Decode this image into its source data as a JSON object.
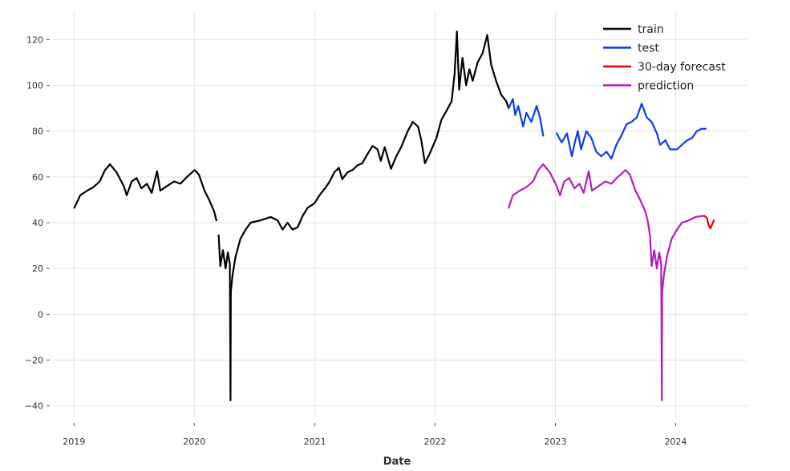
{
  "chart_data": {
    "type": "line",
    "xlabel": "Date",
    "ylabel": "",
    "x_axis_kind": "date",
    "xlim": [
      "2018-10-29",
      "2024-08-06"
    ],
    "ylim": [
      -45,
      132
    ],
    "x_ticks": [
      {
        "date": "2019-01-01",
        "label": "2019"
      },
      {
        "date": "2020-01-01",
        "label": "2020"
      },
      {
        "date": "2021-01-01",
        "label": "2021"
      },
      {
        "date": "2022-01-01",
        "label": "2022"
      },
      {
        "date": "2023-01-01",
        "label": "2023"
      },
      {
        "date": "2024-01-01",
        "label": "2024"
      }
    ],
    "y_ticks": [
      {
        "value": 120,
        "label": "120"
      },
      {
        "value": 100,
        "label": "100"
      },
      {
        "value": 80,
        "label": "80"
      },
      {
        "value": 60,
        "label": "60"
      },
      {
        "value": 40,
        "label": "40"
      },
      {
        "value": 20,
        "label": "20"
      },
      {
        "value": 0,
        "label": "0"
      },
      {
        "value": -20,
        "label": "−20"
      },
      {
        "value": -40,
        "label": "−40"
      }
    ],
    "grid": true,
    "legend_position": "top-right",
    "series": [
      {
        "name": "train",
        "color": "#000000",
        "points": [
          [
            "2019-01-02",
            46.5
          ],
          [
            "2019-01-20",
            52
          ],
          [
            "2019-02-10",
            54
          ],
          [
            "2019-03-01",
            55.5
          ],
          [
            "2019-03-20",
            58
          ],
          [
            "2019-04-05",
            63
          ],
          [
            "2019-04-20",
            65.5
          ],
          [
            "2019-05-10",
            62
          ],
          [
            "2019-06-01",
            56
          ],
          [
            "2019-06-10",
            52
          ],
          [
            "2019-06-25",
            58
          ],
          [
            "2019-07-10",
            59.5
          ],
          [
            "2019-07-25",
            55
          ],
          [
            "2019-08-10",
            57
          ],
          [
            "2019-08-25",
            53
          ],
          [
            "2019-09-10",
            62.5
          ],
          [
            "2019-09-20",
            54
          ],
          [
            "2019-10-10",
            56
          ],
          [
            "2019-11-01",
            58
          ],
          [
            "2019-11-20",
            57
          ],
          [
            "2019-12-10",
            60
          ],
          [
            "2020-01-02",
            63
          ],
          [
            "2020-01-15",
            61
          ],
          [
            "2020-02-01",
            54
          ],
          [
            "2020-02-15",
            50
          ],
          [
            "2020-03-01",
            45
          ],
          [
            "2020-03-08",
            41
          ],
          [
            "2020-03-12",
            null
          ],
          [
            "2020-03-15",
            34.5
          ],
          [
            "2020-03-20",
            21
          ],
          [
            "2020-03-28",
            28
          ],
          [
            "2020-04-05",
            20
          ],
          [
            "2020-04-12",
            27
          ],
          [
            "2020-04-18",
            22
          ],
          [
            "2020-04-20",
            -37.6
          ],
          [
            "2020-04-21",
            10
          ],
          [
            "2020-04-26",
            17
          ],
          [
            "2020-05-05",
            25
          ],
          [
            "2020-05-20",
            33
          ],
          [
            "2020-06-05",
            37
          ],
          [
            "2020-06-20",
            40
          ],
          [
            "2020-07-20",
            41
          ],
          [
            "2020-08-20",
            42.5
          ],
          [
            "2020-09-10",
            41
          ],
          [
            "2020-09-25",
            37
          ],
          [
            "2020-10-10",
            40
          ],
          [
            "2020-10-25",
            37
          ],
          [
            "2020-11-10",
            38
          ],
          [
            "2020-11-25",
            43
          ],
          [
            "2020-12-10",
            46.5
          ],
          [
            "2020-12-31",
            48.5
          ],
          [
            "2021-01-15",
            52
          ],
          [
            "2021-02-01",
            55
          ],
          [
            "2021-02-15",
            58
          ],
          [
            "2021-03-01",
            62
          ],
          [
            "2021-03-15",
            64
          ],
          [
            "2021-03-25",
            59
          ],
          [
            "2021-04-10",
            62
          ],
          [
            "2021-04-25",
            63
          ],
          [
            "2021-05-10",
            65
          ],
          [
            "2021-05-25",
            66
          ],
          [
            "2021-06-10",
            70
          ],
          [
            "2021-06-25",
            73.5
          ],
          [
            "2021-07-10",
            72
          ],
          [
            "2021-07-20",
            67
          ],
          [
            "2021-08-01",
            73
          ],
          [
            "2021-08-20",
            63.5
          ],
          [
            "2021-09-05",
            69
          ],
          [
            "2021-09-20",
            73
          ],
          [
            "2021-10-10",
            80
          ],
          [
            "2021-10-25",
            84
          ],
          [
            "2021-11-10",
            82
          ],
          [
            "2021-11-20",
            76
          ],
          [
            "2021-12-01",
            66
          ],
          [
            "2021-12-15",
            70
          ],
          [
            "2022-01-05",
            77
          ],
          [
            "2022-01-20",
            85
          ],
          [
            "2022-02-05",
            89
          ],
          [
            "2022-02-20",
            93
          ],
          [
            "2022-03-01",
            105
          ],
          [
            "2022-03-08",
            123.5
          ],
          [
            "2022-03-15",
            98
          ],
          [
            "2022-03-25",
            112
          ],
          [
            "2022-04-05",
            100
          ],
          [
            "2022-04-15",
            107
          ],
          [
            "2022-04-25",
            102
          ],
          [
            "2022-05-10",
            110
          ],
          [
            "2022-05-25",
            114
          ],
          [
            "2022-06-08",
            122
          ],
          [
            "2022-06-20",
            109
          ],
          [
            "2022-07-05",
            102
          ],
          [
            "2022-07-20",
            96
          ],
          [
            "2022-08-05",
            93
          ],
          [
            "2022-08-12",
            90
          ]
        ]
      },
      {
        "name": "test",
        "color": "#0a3df0",
        "points": [
          [
            "2022-08-12",
            90
          ],
          [
            "2022-08-25",
            94
          ],
          [
            "2022-09-01",
            87
          ],
          [
            "2022-09-10",
            91
          ],
          [
            "2022-09-25",
            82
          ],
          [
            "2022-10-05",
            88
          ],
          [
            "2022-10-20",
            84
          ],
          [
            "2022-11-05",
            91
          ],
          [
            "2022-11-15",
            86
          ],
          [
            "2022-11-25",
            78
          ],
          [
            "2022-12-10",
            null
          ],
          [
            "2023-01-05",
            79
          ],
          [
            "2023-01-20",
            75
          ],
          [
            "2023-02-05",
            79
          ],
          [
            "2023-02-20",
            69
          ],
          [
            "2023-03-01",
            75
          ],
          [
            "2023-03-10",
            80
          ],
          [
            "2023-03-20",
            72
          ],
          [
            "2023-04-05",
            80
          ],
          [
            "2023-04-20",
            77
          ],
          [
            "2023-05-05",
            71
          ],
          [
            "2023-05-20",
            69
          ],
          [
            "2023-06-05",
            71
          ],
          [
            "2023-06-20",
            68
          ],
          [
            "2023-07-05",
            74
          ],
          [
            "2023-07-20",
            78
          ],
          [
            "2023-08-05",
            83
          ],
          [
            "2023-08-20",
            84
          ],
          [
            "2023-09-05",
            86
          ],
          [
            "2023-09-20",
            92
          ],
          [
            "2023-10-05",
            86
          ],
          [
            "2023-10-20",
            84
          ],
          [
            "2023-11-05",
            79
          ],
          [
            "2023-11-15",
            74
          ],
          [
            "2023-12-01",
            76
          ],
          [
            "2023-12-15",
            72
          ],
          [
            "2024-01-05",
            72
          ],
          [
            "2024-01-20",
            74
          ],
          [
            "2024-02-05",
            76
          ],
          [
            "2024-02-20",
            77
          ],
          [
            "2024-03-05",
            80
          ],
          [
            "2024-03-20",
            81
          ],
          [
            "2024-04-01",
            81
          ]
        ]
      },
      {
        "name": "30-day forecast",
        "color": "#e60000",
        "points": [
          [
            "2024-03-28",
            43
          ],
          [
            "2024-04-05",
            42
          ],
          [
            "2024-04-10",
            39
          ],
          [
            "2024-04-15",
            37.5
          ],
          [
            "2024-04-20",
            39
          ],
          [
            "2024-04-26",
            41
          ]
        ]
      },
      {
        "name": "prediction",
        "color": "#b41cbc",
        "points": [
          [
            "2022-08-12",
            46.5
          ],
          [
            "2022-08-25",
            52
          ],
          [
            "2022-09-15",
            54
          ],
          [
            "2022-10-05",
            55.5
          ],
          [
            "2022-10-25",
            58
          ],
          [
            "2022-11-10",
            63
          ],
          [
            "2022-11-25",
            65.5
          ],
          [
            "2022-12-15",
            62
          ],
          [
            "2023-01-05",
            56
          ],
          [
            "2023-01-15",
            52
          ],
          [
            "2023-01-28",
            58
          ],
          [
            "2023-02-12",
            59.5
          ],
          [
            "2023-02-28",
            55
          ],
          [
            "2023-03-15",
            57
          ],
          [
            "2023-03-28",
            53
          ],
          [
            "2023-04-12",
            62.5
          ],
          [
            "2023-04-22",
            54
          ],
          [
            "2023-05-12",
            56
          ],
          [
            "2023-06-02",
            58
          ],
          [
            "2023-06-20",
            57
          ],
          [
            "2023-07-10",
            60
          ],
          [
            "2023-08-02",
            63
          ],
          [
            "2023-08-15",
            61
          ],
          [
            "2023-09-01",
            54
          ],
          [
            "2023-09-15",
            50
          ],
          [
            "2023-10-01",
            45
          ],
          [
            "2023-10-08",
            41
          ],
          [
            "2023-10-15",
            34.5
          ],
          [
            "2023-10-20",
            21
          ],
          [
            "2023-10-28",
            28
          ],
          [
            "2023-11-05",
            20
          ],
          [
            "2023-11-12",
            27
          ],
          [
            "2023-11-18",
            22
          ],
          [
            "2023-11-20",
            -37.6
          ],
          [
            "2023-11-21",
            10
          ],
          [
            "2023-11-26",
            17
          ],
          [
            "2023-12-05",
            25
          ],
          [
            "2023-12-20",
            33
          ],
          [
            "2024-01-05",
            37
          ],
          [
            "2024-01-20",
            40
          ],
          [
            "2024-02-10",
            41
          ],
          [
            "2024-03-01",
            42.5
          ],
          [
            "2024-03-28",
            43
          ]
        ]
      }
    ]
  }
}
